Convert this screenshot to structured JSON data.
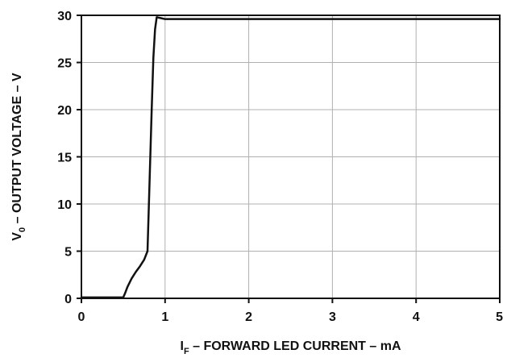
{
  "chart_data": {
    "type": "line",
    "xlabel": {
      "main": "I",
      "sub": "F",
      "rest": " – FORWARD LED CURRENT – mA"
    },
    "ylabel": {
      "main": "V",
      "sub": "0",
      "rest": " – OUTPUT VOLTAGE – V"
    },
    "xlim": [
      0,
      5
    ],
    "ylim": [
      0,
      30
    ],
    "x_ticks": [
      0,
      1,
      2,
      3,
      4,
      5
    ],
    "y_ticks": [
      0,
      5,
      10,
      15,
      20,
      25,
      30
    ],
    "x_tick_labels": [
      "0",
      "1",
      "2",
      "3",
      "4",
      "5"
    ],
    "y_tick_labels": [
      "0",
      "5",
      "10",
      "15",
      "20",
      "25",
      "30"
    ],
    "grid": true,
    "series": [
      {
        "color": "#111111",
        "x": [
          0,
          0.45,
          0.5,
          0.52,
          0.55,
          0.6,
          0.65,
          0.7,
          0.75,
          0.79,
          0.8,
          0.82,
          0.84,
          0.86,
          0.88,
          0.9,
          0.95,
          1.0,
          1.05,
          1.1,
          2.0,
          3.0,
          4.0,
          5.0
        ],
        "y": [
          0.1,
          0.1,
          0.1,
          0.5,
          1.2,
          2.1,
          2.8,
          3.4,
          4.1,
          5.0,
          8.0,
          14.0,
          20.0,
          25.5,
          28.5,
          29.8,
          29.7,
          29.6,
          29.6,
          29.6,
          29.6,
          29.6,
          29.6,
          29.6
        ]
      }
    ]
  }
}
